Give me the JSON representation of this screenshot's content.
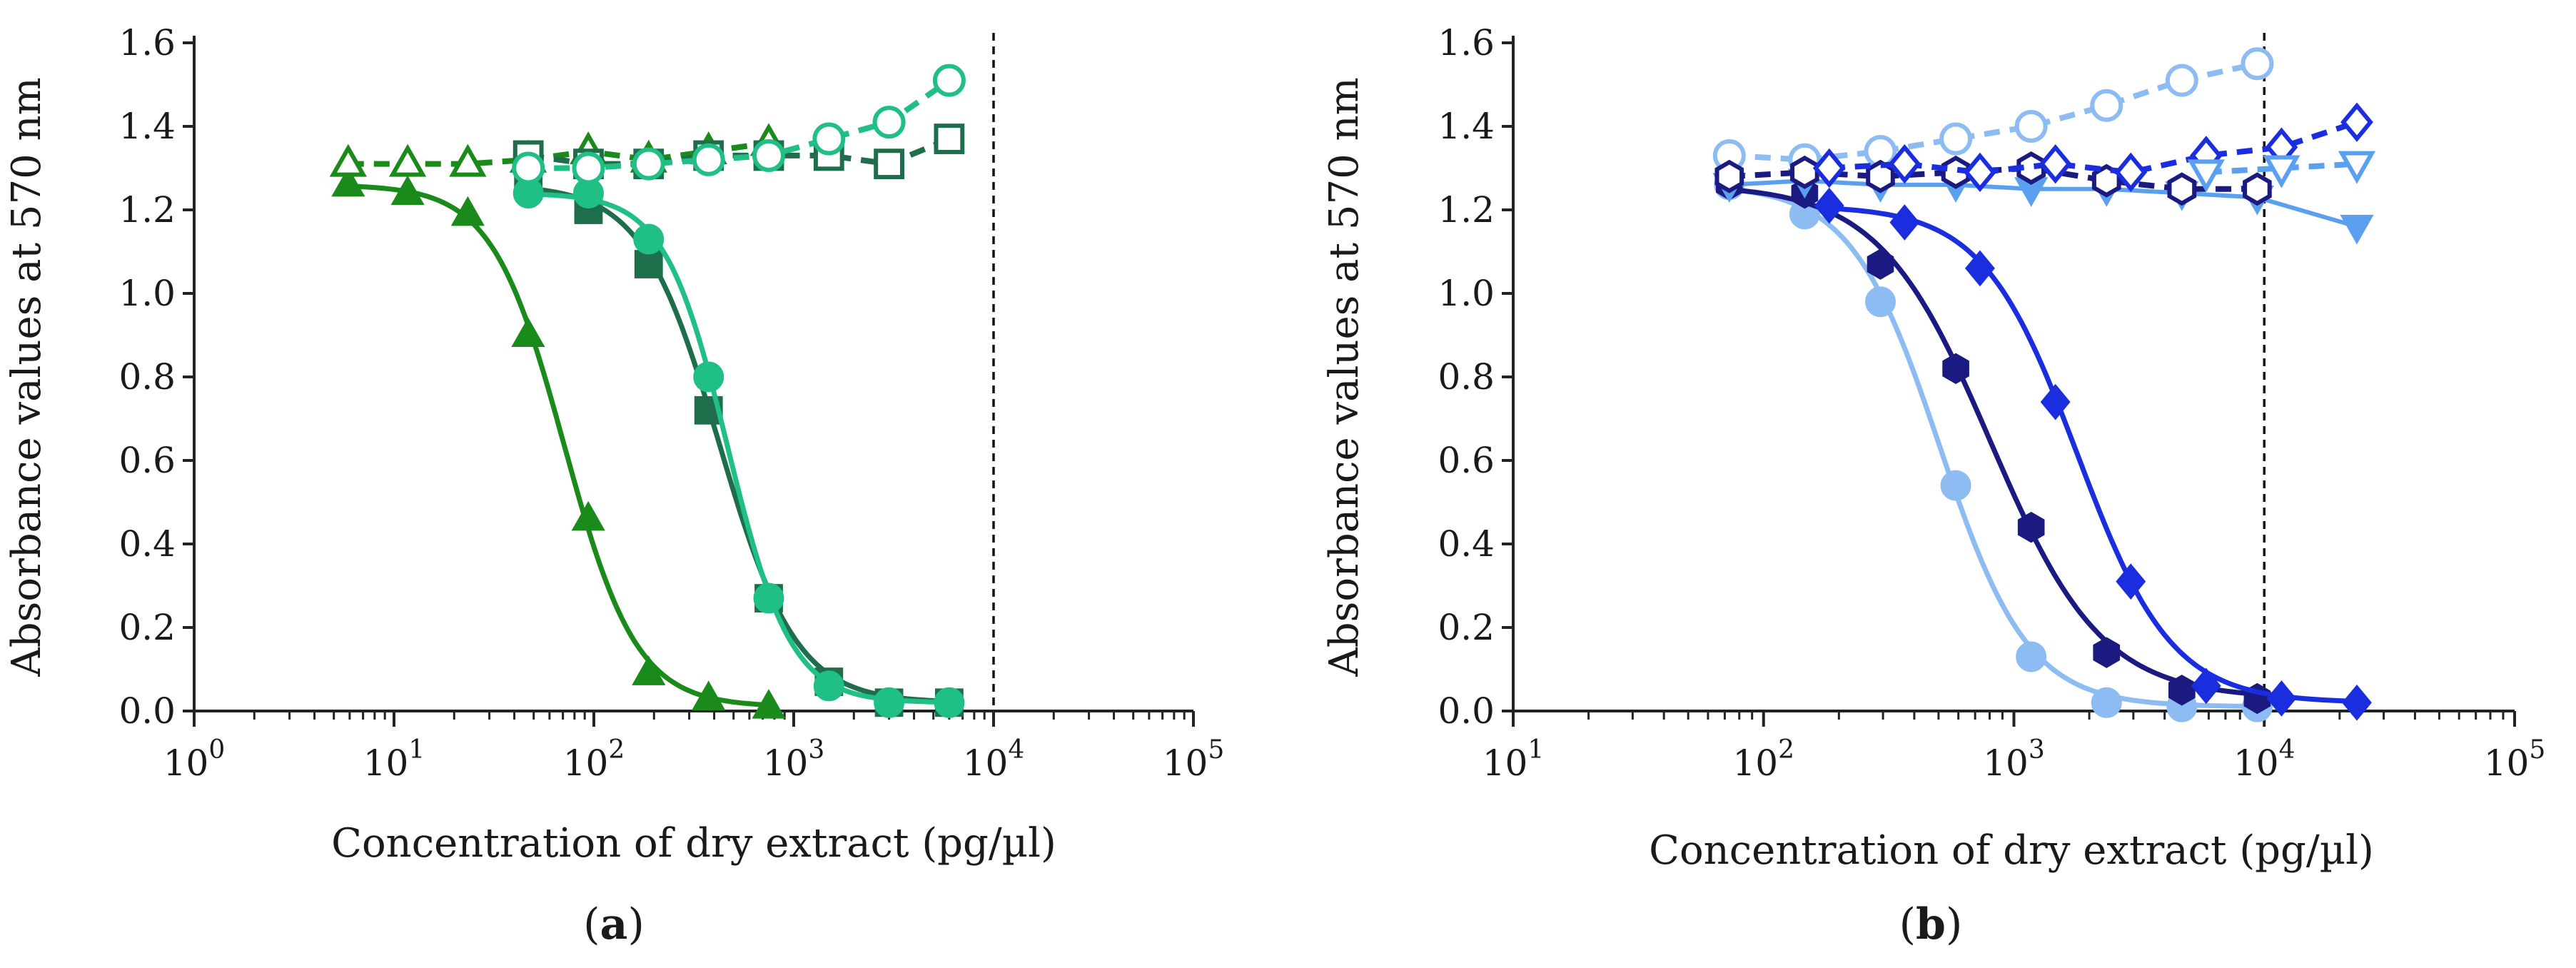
{
  "chart_data": [
    {
      "type": "scatter",
      "title": "",
      "panel_label": {
        "open": "(",
        "letter": "a",
        "close": ")"
      },
      "xlabel": "Concentration of dry extract (pg/µl)",
      "ylabel": "Absorbance values at 570 nm",
      "x_scale": "log10",
      "xlim_exponent": [
        0,
        5
      ],
      "x_ticks": [
        {
          "base": "10",
          "exp": "0"
        },
        {
          "base": "10",
          "exp": "1"
        },
        {
          "base": "10",
          "exp": "2"
        },
        {
          "base": "10",
          "exp": "3"
        },
        {
          "base": "10",
          "exp": "4"
        },
        {
          "base": "10",
          "exp": "5"
        }
      ],
      "ylim": [
        0,
        1.6
      ],
      "y_ticks": [
        "0.0",
        "0.2",
        "0.4",
        "0.6",
        "0.8",
        "1.0",
        "1.2",
        "1.4",
        "1.6"
      ],
      "y_tick_values": [
        0,
        0.2,
        0.4,
        0.6,
        0.8,
        1.0,
        1.2,
        1.4,
        1.6
      ],
      "reference_line_x": 10000,
      "series": [
        {
          "name": "triangle-filled",
          "marker": "triangle",
          "filled": true,
          "color": "#1a8a1a",
          "line": "solid",
          "fit": true,
          "x": [
            5.9,
            11.7,
            23.4,
            46.9,
            93.8,
            188,
            375,
            750
          ],
          "y": [
            1.26,
            1.24,
            1.19,
            0.9,
            0.46,
            0.09,
            0.03,
            0.01
          ]
        },
        {
          "name": "square-filled",
          "marker": "square",
          "filled": true,
          "color": "#1e6e4c",
          "line": "solid",
          "fit": true,
          "x": [
            47,
            94,
            188,
            375,
            750,
            1500,
            3000,
            6000
          ],
          "y": [
            1.26,
            1.2,
            1.07,
            0.72,
            0.27,
            0.07,
            0.02,
            0.02
          ]
        },
        {
          "name": "circle-filled",
          "marker": "circle",
          "filled": true,
          "color": "#1fbf85",
          "line": "solid",
          "fit": true,
          "x": [
            47,
            94,
            188,
            375,
            750,
            1500,
            3000,
            6000
          ],
          "y": [
            1.24,
            1.24,
            1.13,
            0.8,
            0.27,
            0.06,
            0.02,
            0.02
          ]
        },
        {
          "name": "triangle-open",
          "marker": "triangle",
          "filled": false,
          "color": "#1a8a1a",
          "line": "dashed",
          "fit": false,
          "x": [
            5.9,
            11.7,
            23.4,
            46.9,
            93.8,
            188,
            375,
            750
          ],
          "y": [
            1.31,
            1.31,
            1.31,
            1.32,
            1.34,
            1.32,
            1.34,
            1.36
          ]
        },
        {
          "name": "square-open",
          "marker": "square",
          "filled": false,
          "color": "#1e6e4c",
          "line": "dashed",
          "fit": false,
          "x": [
            47,
            94,
            188,
            375,
            750,
            1500,
            3000,
            6000
          ],
          "y": [
            1.33,
            1.31,
            1.31,
            1.33,
            1.33,
            1.33,
            1.31,
            1.37
          ]
        },
        {
          "name": "circle-open",
          "marker": "circle",
          "filled": false,
          "color": "#1fbf85",
          "line": "dashed",
          "fit": false,
          "x": [
            47,
            94,
            188,
            375,
            750,
            1500,
            3000,
            6000
          ],
          "y": [
            1.3,
            1.3,
            1.31,
            1.32,
            1.33,
            1.37,
            1.41,
            1.51
          ]
        }
      ]
    },
    {
      "type": "scatter",
      "title": "",
      "panel_label": {
        "open": "(",
        "letter": "b",
        "close": ")"
      },
      "xlabel": "Concentration of dry extract (pg/µl)",
      "ylabel": "Absorbance values at 570 nm",
      "x_scale": "log10",
      "xlim_exponent": [
        1,
        5
      ],
      "x_ticks": [
        {
          "base": "10",
          "exp": "1"
        },
        {
          "base": "10",
          "exp": "2"
        },
        {
          "base": "10",
          "exp": "3"
        },
        {
          "base": "10",
          "exp": "4"
        },
        {
          "base": "10",
          "exp": "5"
        }
      ],
      "ylim": [
        0,
        1.6
      ],
      "y_ticks": [
        "0.0",
        "0.2",
        "0.4",
        "0.6",
        "0.8",
        "1.0",
        "1.2",
        "1.4",
        "1.6"
      ],
      "y_tick_values": [
        0,
        0.2,
        0.4,
        0.6,
        0.8,
        1.0,
        1.2,
        1.4,
        1.6
      ],
      "reference_line_x": 10000,
      "series": [
        {
          "name": "circle-filled",
          "marker": "circle",
          "filled": true,
          "color": "#8cbcf2",
          "line": "solid",
          "fit": true,
          "x": [
            73,
            146,
            293,
            586,
            1172,
            2344,
            4688,
            9375
          ],
          "y": [
            1.26,
            1.19,
            0.98,
            0.54,
            0.13,
            0.02,
            0.01,
            0.01
          ]
        },
        {
          "name": "hexagon-filled",
          "marker": "hexagon",
          "filled": true,
          "color": "#1a1a80",
          "line": "solid",
          "fit": true,
          "x": [
            73,
            146,
            293,
            586,
            1172,
            2344,
            4688,
            9375
          ],
          "y": [
            1.26,
            1.24,
            1.07,
            0.82,
            0.44,
            0.14,
            0.05,
            0.03
          ]
        },
        {
          "name": "diamond-filled",
          "marker": "diamond",
          "filled": true,
          "color": "#1a2ee0",
          "line": "solid",
          "fit": true,
          "x": [
            183,
            366,
            732,
            1465,
            2930,
            5859,
            11719,
            23438
          ],
          "y": [
            1.21,
            1.17,
            1.06,
            0.74,
            0.31,
            0.06,
            0.03,
            0.02
          ]
        },
        {
          "name": "triangle-down-filled",
          "marker": "triangle-down",
          "filled": true,
          "color": "#5aa0ee",
          "line": "solid",
          "fit": false,
          "x": [
            73,
            146,
            293,
            586,
            1172,
            2344,
            4688,
            9375,
            23438
          ],
          "y": [
            1.26,
            1.27,
            1.26,
            1.26,
            1.25,
            1.25,
            1.24,
            1.23,
            1.16
          ]
        },
        {
          "name": "circle-open",
          "marker": "circle",
          "filled": false,
          "color": "#8cbcf2",
          "line": "dashed",
          "fit": false,
          "x": [
            73,
            146,
            293,
            586,
            1172,
            2344,
            4688,
            9375
          ],
          "y": [
            1.33,
            1.32,
            1.34,
            1.37,
            1.4,
            1.45,
            1.51,
            1.55
          ]
        },
        {
          "name": "hexagon-open",
          "marker": "hexagon",
          "filled": false,
          "color": "#1a1a80",
          "line": "dashed",
          "fit": false,
          "x": [
            73,
            146,
            293,
            586,
            1172,
            2344,
            4688,
            9375
          ],
          "y": [
            1.28,
            1.29,
            1.28,
            1.29,
            1.3,
            1.27,
            1.25,
            1.25
          ]
        },
        {
          "name": "diamond-open",
          "marker": "diamond",
          "filled": false,
          "color": "#1a2ee0",
          "line": "dashed",
          "fit": false,
          "x": [
            183,
            366,
            732,
            1465,
            2930,
            5859,
            11719,
            23438
          ],
          "y": [
            1.3,
            1.31,
            1.29,
            1.31,
            1.29,
            1.33,
            1.35,
            1.41
          ]
        },
        {
          "name": "triangle-down-open",
          "marker": "triangle-down",
          "filled": false,
          "color": "#5aa0ee",
          "line": "dashed",
          "fit": false,
          "x": [
            5859,
            11719,
            23438
          ],
          "y": [
            1.29,
            1.3,
            1.31
          ]
        }
      ]
    }
  ]
}
